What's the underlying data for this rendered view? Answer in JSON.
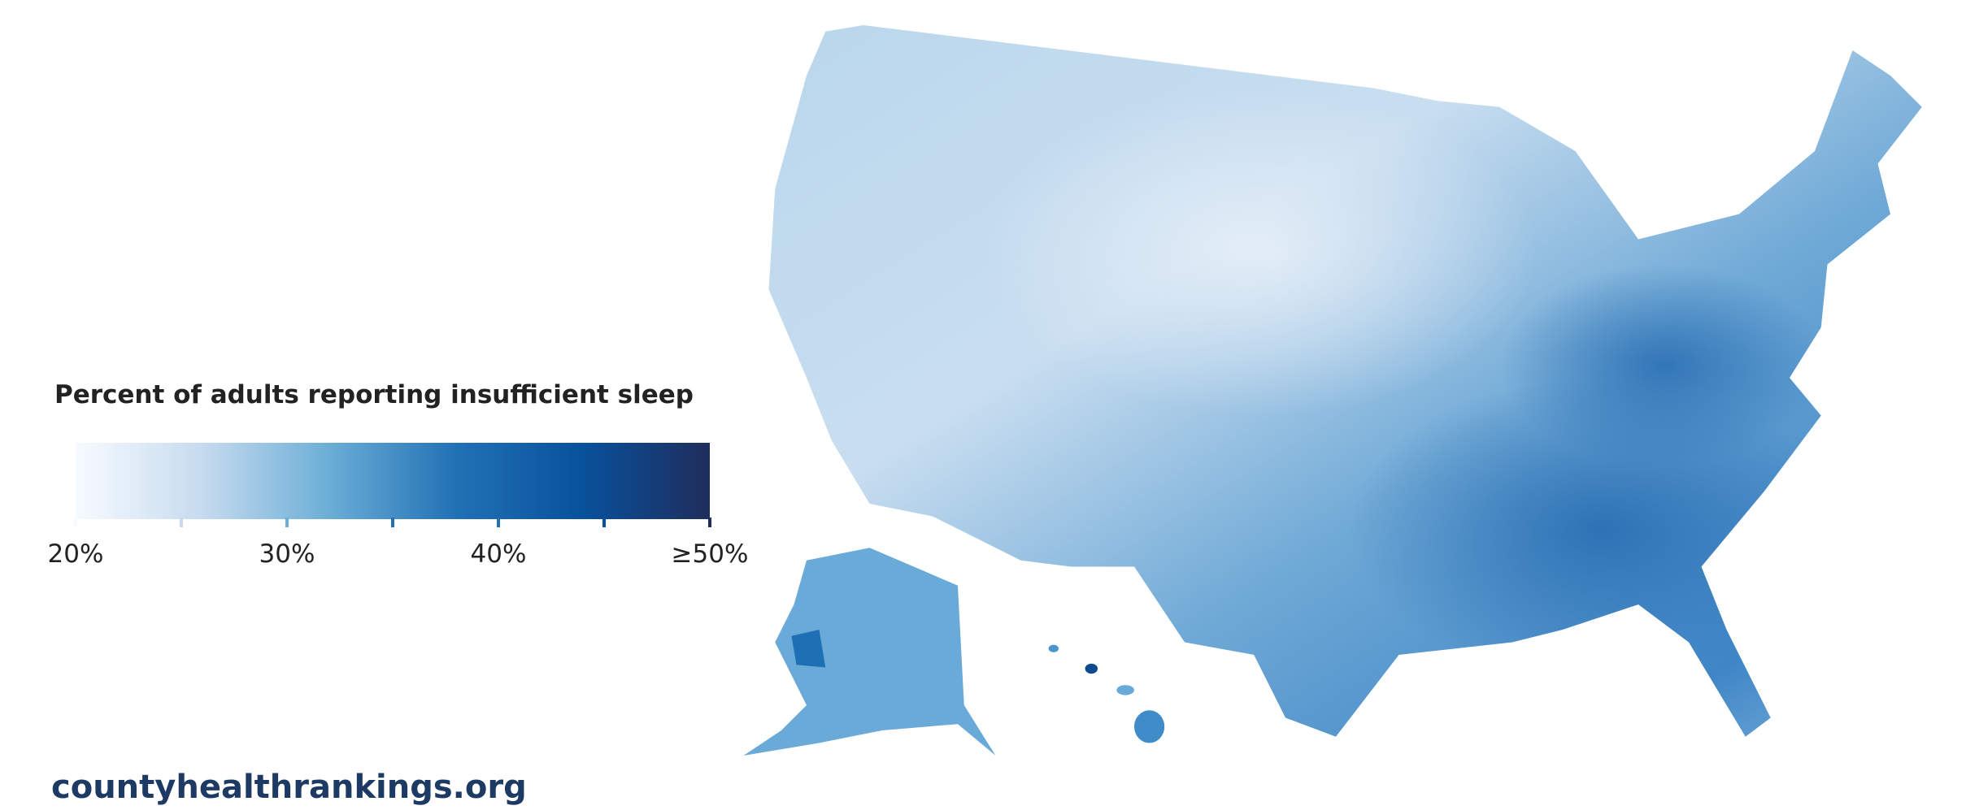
{
  "legend": {
    "title": "Percent of adults reporting insufficient sleep",
    "range": [
      20,
      50
    ],
    "ticks": [
      {
        "value": 20,
        "label": "20%"
      },
      {
        "value": 30,
        "label": "30%"
      },
      {
        "value": 40,
        "label": "40%"
      },
      {
        "value": 50,
        "label": "≥50%"
      }
    ],
    "minor_ticks": [
      25,
      35,
      45
    ],
    "colors": [
      "#f7fbff",
      "#c6dbef",
      "#6baed6",
      "#2171b5",
      "#08519c",
      "#1f2d5c"
    ]
  },
  "source": "countyhealthrankings.org"
}
